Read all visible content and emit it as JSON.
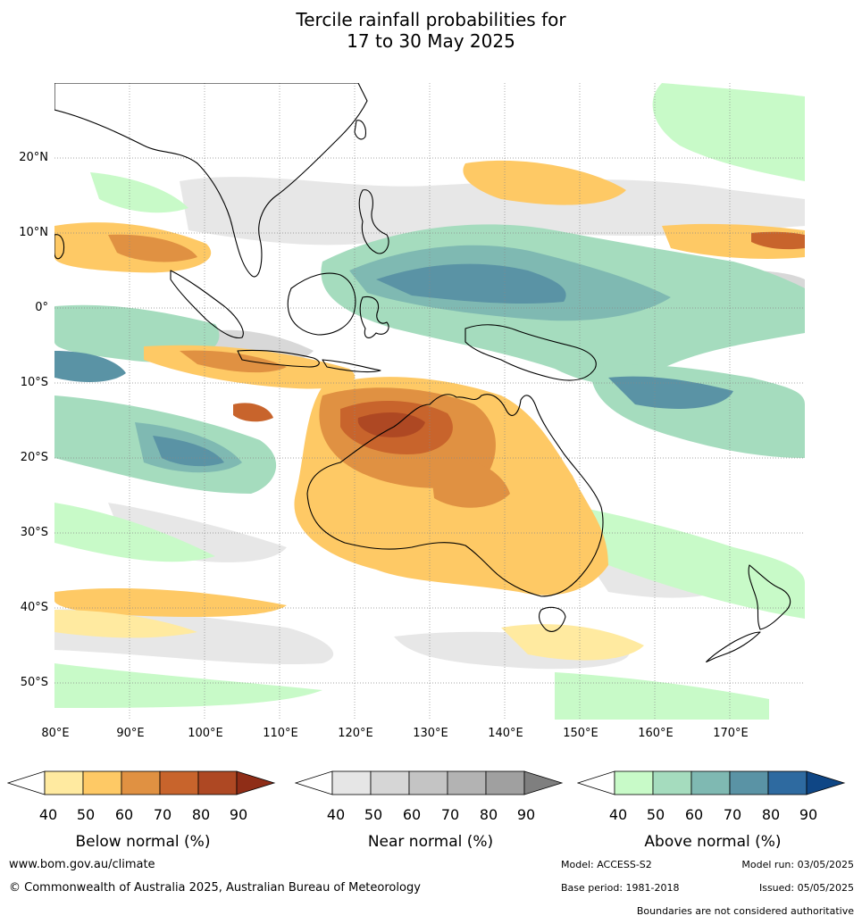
{
  "title": {
    "line1": "Tercile rainfall probabilities for",
    "line2": "17 to 30 May 2025"
  },
  "map": {
    "lat_labels": [
      "20°N",
      "10°N",
      "0°",
      "10°S",
      "20°S",
      "30°S",
      "40°S",
      "50°S"
    ],
    "lon_labels": [
      "80°E",
      "90°E",
      "100°E",
      "110°E",
      "120°E",
      "130°E",
      "140°E",
      "150°E",
      "160°E",
      "170°E"
    ],
    "lat_range": [
      -55,
      30
    ],
    "lon_range": [
      80,
      180
    ]
  },
  "legend": {
    "below": {
      "caption": "Below normal (%)",
      "ticks": [
        "40",
        "50",
        "60",
        "70",
        "80",
        "90"
      ],
      "colors": [
        "#ffffff",
        "#ffeaa0",
        "#fec965",
        "#e09142",
        "#c8642c",
        "#ae4823",
        "#8f2d17"
      ]
    },
    "near": {
      "caption": "Near normal (%)",
      "ticks": [
        "40",
        "50",
        "60",
        "70",
        "80",
        "90"
      ],
      "colors": [
        "#ffffff",
        "#e6e6e6",
        "#d6d6d6",
        "#c4c4c4",
        "#b3b3b3",
        "#a0a0a0",
        "#7f7f7f"
      ]
    },
    "above": {
      "caption": "Above normal (%)",
      "ticks": [
        "40",
        "50",
        "60",
        "70",
        "80",
        "90"
      ],
      "colors": [
        "#ffffff",
        "#c8fac8",
        "#a5dcbe",
        "#7fb9b2",
        "#5a93a5",
        "#2e6aa0",
        "#0f4685"
      ]
    }
  },
  "footer": {
    "url": "www.bom.gov.au/climate",
    "copyright": "© Commonwealth of Australia 2025, Australian Bureau of Meteorology",
    "model": "Model: ACCESS-S2",
    "model_run": "Model run: 03/05/2025",
    "base_period": "Base period: 1981-2018",
    "issued": "Issued: 05/05/2025",
    "boundaries": "Boundaries are not considered authoritative"
  }
}
